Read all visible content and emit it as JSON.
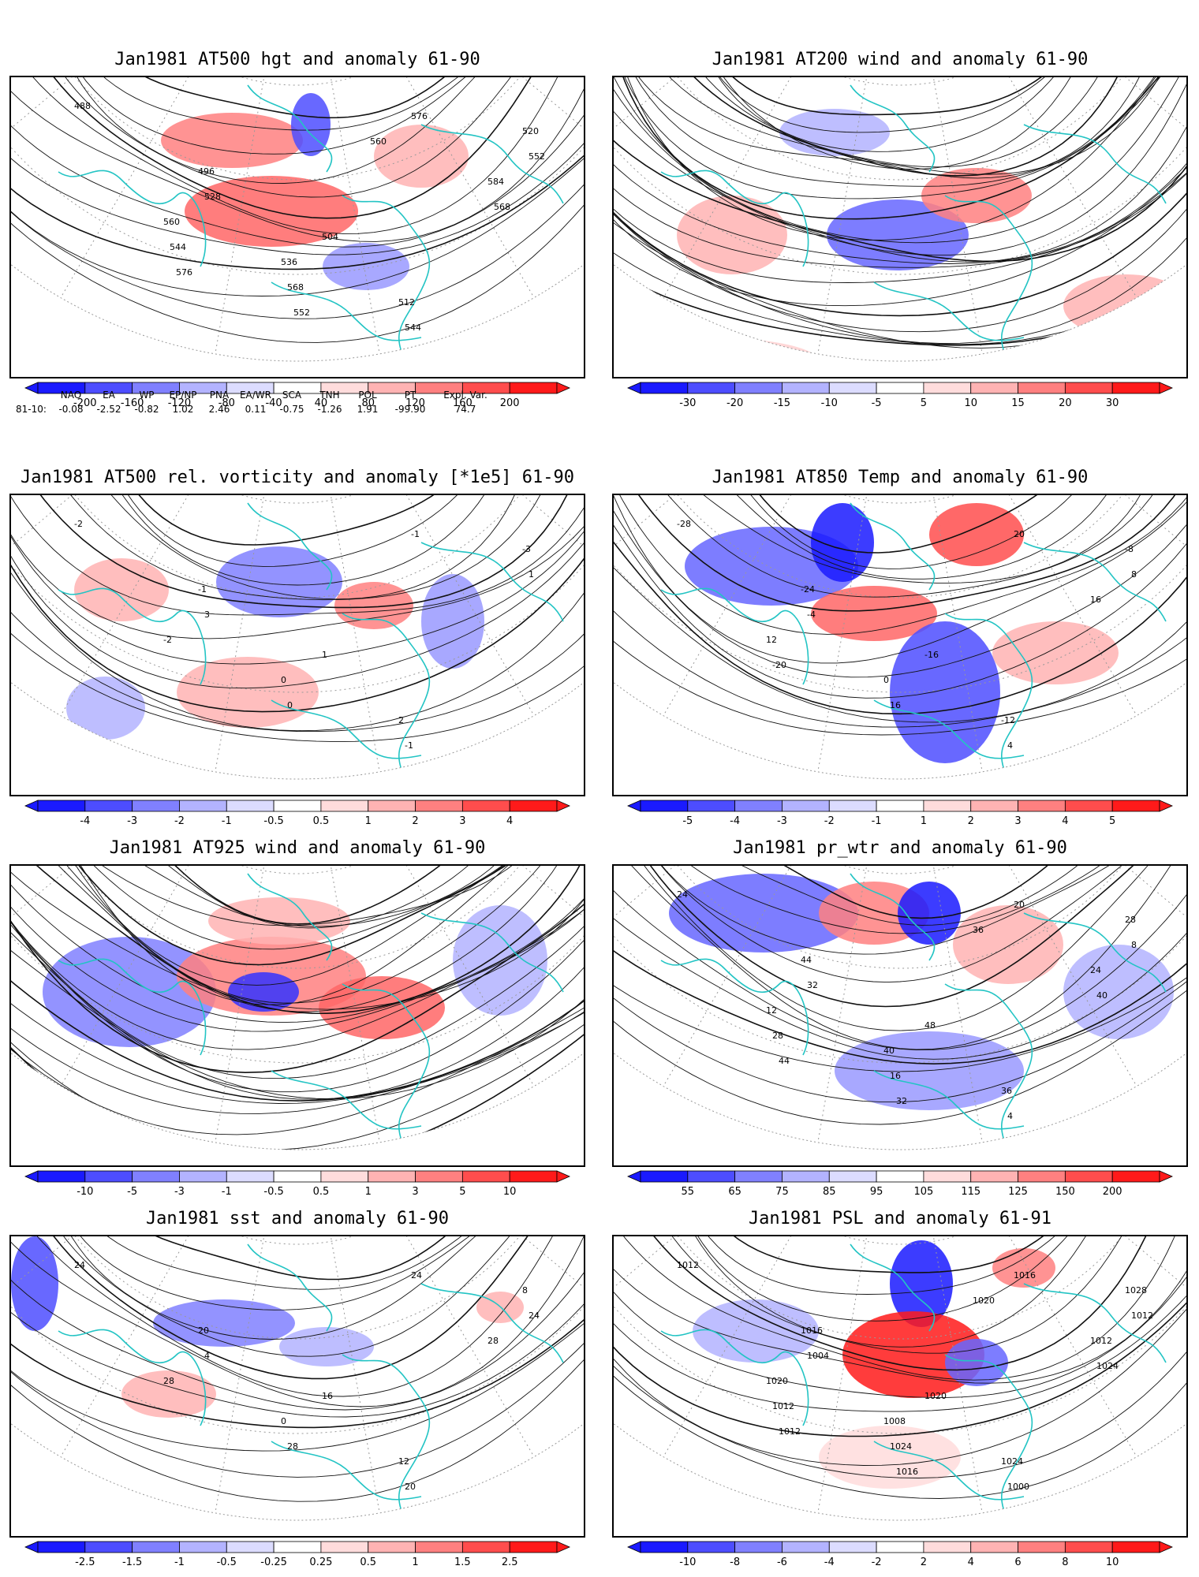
{
  "panels": [
    {
      "title": "Jan1981 AT500 hgt and anomaly 61-90",
      "colorbar": [
        "-200",
        "-160",
        "-120",
        "-80",
        "-40",
        "40",
        "80",
        "120",
        "160",
        "200"
      ],
      "contour_labels": [
        "488",
        "496",
        "504",
        "512",
        "520",
        "528",
        "536",
        "544",
        "552",
        "560",
        "568",
        "576",
        "584",
        "544",
        "552",
        "560",
        "568",
        "576"
      ]
    },
    {
      "title": "Jan1981 AT200 wind and anomaly 61-90",
      "colorbar": [
        "-30",
        "-20",
        "-15",
        "-10",
        "-5",
        "5",
        "10",
        "15",
        "20",
        "30"
      ],
      "contour_labels": []
    },
    {
      "title": "Jan1981 AT500 rel. vorticity and anomaly [*1e5] 61-90",
      "colorbar": [
        "-4",
        "-3",
        "-2",
        "-1",
        "-0.5",
        "0.5",
        "1",
        "2",
        "3",
        "4"
      ],
      "contour_labels": [
        "-2",
        "-1",
        "1",
        "2",
        "-3",
        "3",
        "0",
        "-1",
        "1",
        "-2",
        "0",
        "-1"
      ]
    },
    {
      "title": "Jan1981 AT850 Temp and anomaly 61-90",
      "colorbar": [
        "-5",
        "-4",
        "-3",
        "-2",
        "-1",
        "1",
        "2",
        "3",
        "4",
        "5"
      ],
      "contour_labels": [
        "-28",
        "-24",
        "-16",
        "-12",
        "-8",
        "-4",
        "0",
        "4",
        "8",
        "12",
        "16",
        "20",
        "16",
        "-20"
      ]
    },
    {
      "title": "Jan1981 AT925 wind and anomaly 61-90",
      "colorbar": [
        "-10",
        "-5",
        "-3",
        "-1",
        "-0.5",
        "0.5",
        "1",
        "3",
        "5",
        "10"
      ],
      "contour_labels": []
    },
    {
      "title": "Jan1981 pr_wtr and anomaly 61-90",
      "colorbar": [
        "55",
        "65",
        "75",
        "85",
        "95",
        "105",
        "115",
        "125",
        "150",
        "200"
      ],
      "contour_labels": [
        "24",
        "44",
        "48",
        "36",
        "28",
        "32",
        "40",
        "4",
        "8",
        "12",
        "16",
        "20",
        "24",
        "28",
        "32",
        "36",
        "40",
        "44"
      ]
    },
    {
      "title": "Jan1981 sst and anomaly 61-90",
      "colorbar": [
        "-2.5",
        "-1.5",
        "-1",
        "-0.5",
        "-0.25",
        "0.25",
        "0.5",
        "1",
        "1.5",
        "2.5"
      ],
      "contour_labels": [
        "24",
        "20",
        "16",
        "12",
        "8",
        "4",
        "0",
        "20",
        "24",
        "28",
        "28",
        "24",
        "28"
      ]
    },
    {
      "title": "Jan1981 PSL and anomaly 61-91",
      "colorbar": [
        "-10",
        "-8",
        "-6",
        "-4",
        "-2",
        "2",
        "4",
        "6",
        "8",
        "10"
      ],
      "contour_labels": [
        "1012",
        "1016",
        "1020",
        "1024",
        "1028",
        "1004",
        "1008",
        "1000",
        "1012",
        "1020",
        "1024",
        "1016",
        "1012",
        "1012",
        "1016",
        "1020",
        "1024",
        "1012"
      ]
    }
  ],
  "indices": {
    "headers": [
      "NAO",
      "EA",
      "WP",
      "EP/NP",
      "PNA",
      "EA/WR",
      "SCA",
      "TNH",
      "POL",
      "PT",
      "Expl. Var."
    ],
    "row_label": "81-10:",
    "values": [
      "-0.08",
      "-2.52",
      "-0.82",
      "1.02",
      "2.46",
      "0.11",
      "-0.75",
      "-1.26",
      "1.91",
      "-99.90",
      "74.7"
    ]
  },
  "colors": {
    "coast": "#23c4c4",
    "blue_dark": "#1a1aff",
    "red_dark": "#ff1a1a"
  }
}
